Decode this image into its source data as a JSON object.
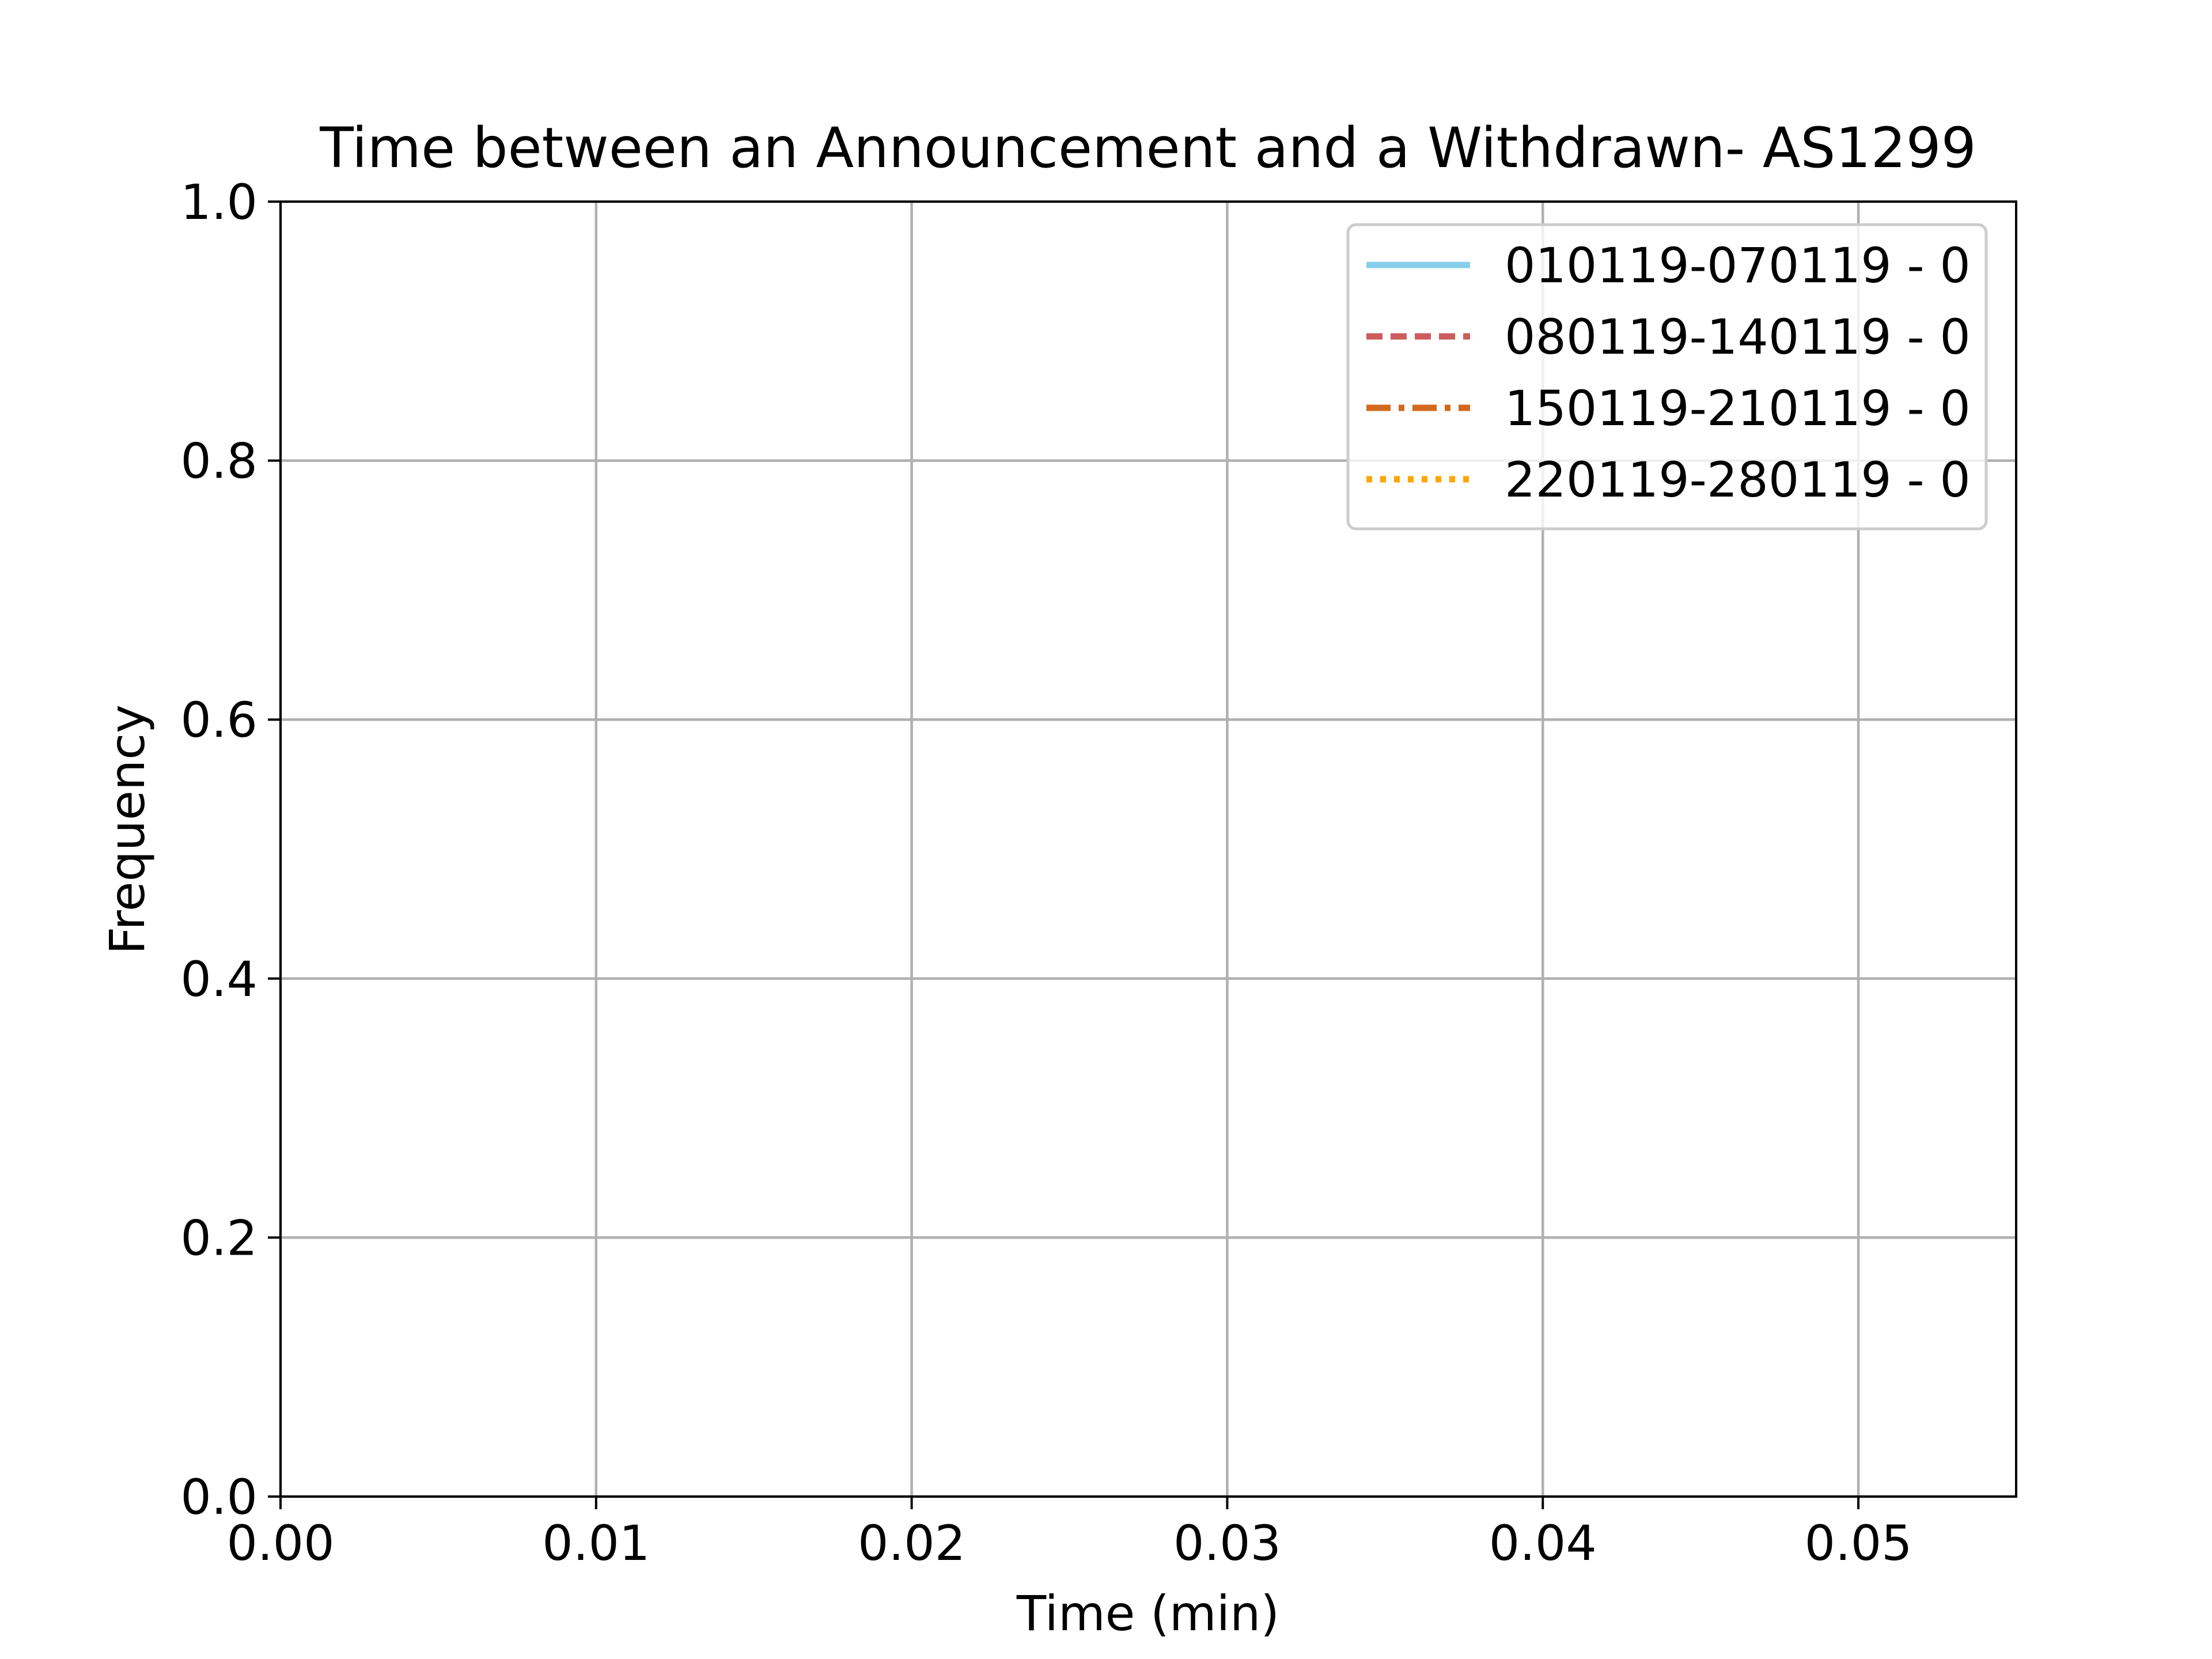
{
  "chart_data": {
    "type": "line",
    "title": "Time between an Announcement and a Withdrawn- AS1299",
    "xlabel": "Time (min)",
    "ylabel": "Frequency",
    "xlim": [
      0,
      0.055
    ],
    "ylim": [
      0,
      1.0
    ],
    "xticks": [
      0.0,
      0.01,
      0.02,
      0.03,
      0.04,
      0.05
    ],
    "xtick_labels": [
      "0.00",
      "0.01",
      "0.02",
      "0.03",
      "0.04",
      "0.05"
    ],
    "yticks": [
      0.0,
      0.2,
      0.4,
      0.6,
      0.8,
      1.0
    ],
    "ytick_labels": [
      "0.0",
      "0.2",
      "0.4",
      "0.6",
      "0.8",
      "1.0"
    ],
    "grid": true,
    "legend_position": "top-right",
    "series": [
      {
        "name": "010119-070119 - 0",
        "color": "#87ceeb",
        "style": "solid",
        "x": [],
        "y": []
      },
      {
        "name": "080119-140119 - 0",
        "color": "#cd5c5c",
        "style": "dashed",
        "x": [],
        "y": []
      },
      {
        "name": "150119-210119 - 0",
        "color": "#d2691e",
        "style": "dashdot",
        "x": [],
        "y": []
      },
      {
        "name": "220119-280119 - 0",
        "color": "#ffa500",
        "style": "dotted",
        "x": [],
        "y": []
      }
    ]
  }
}
